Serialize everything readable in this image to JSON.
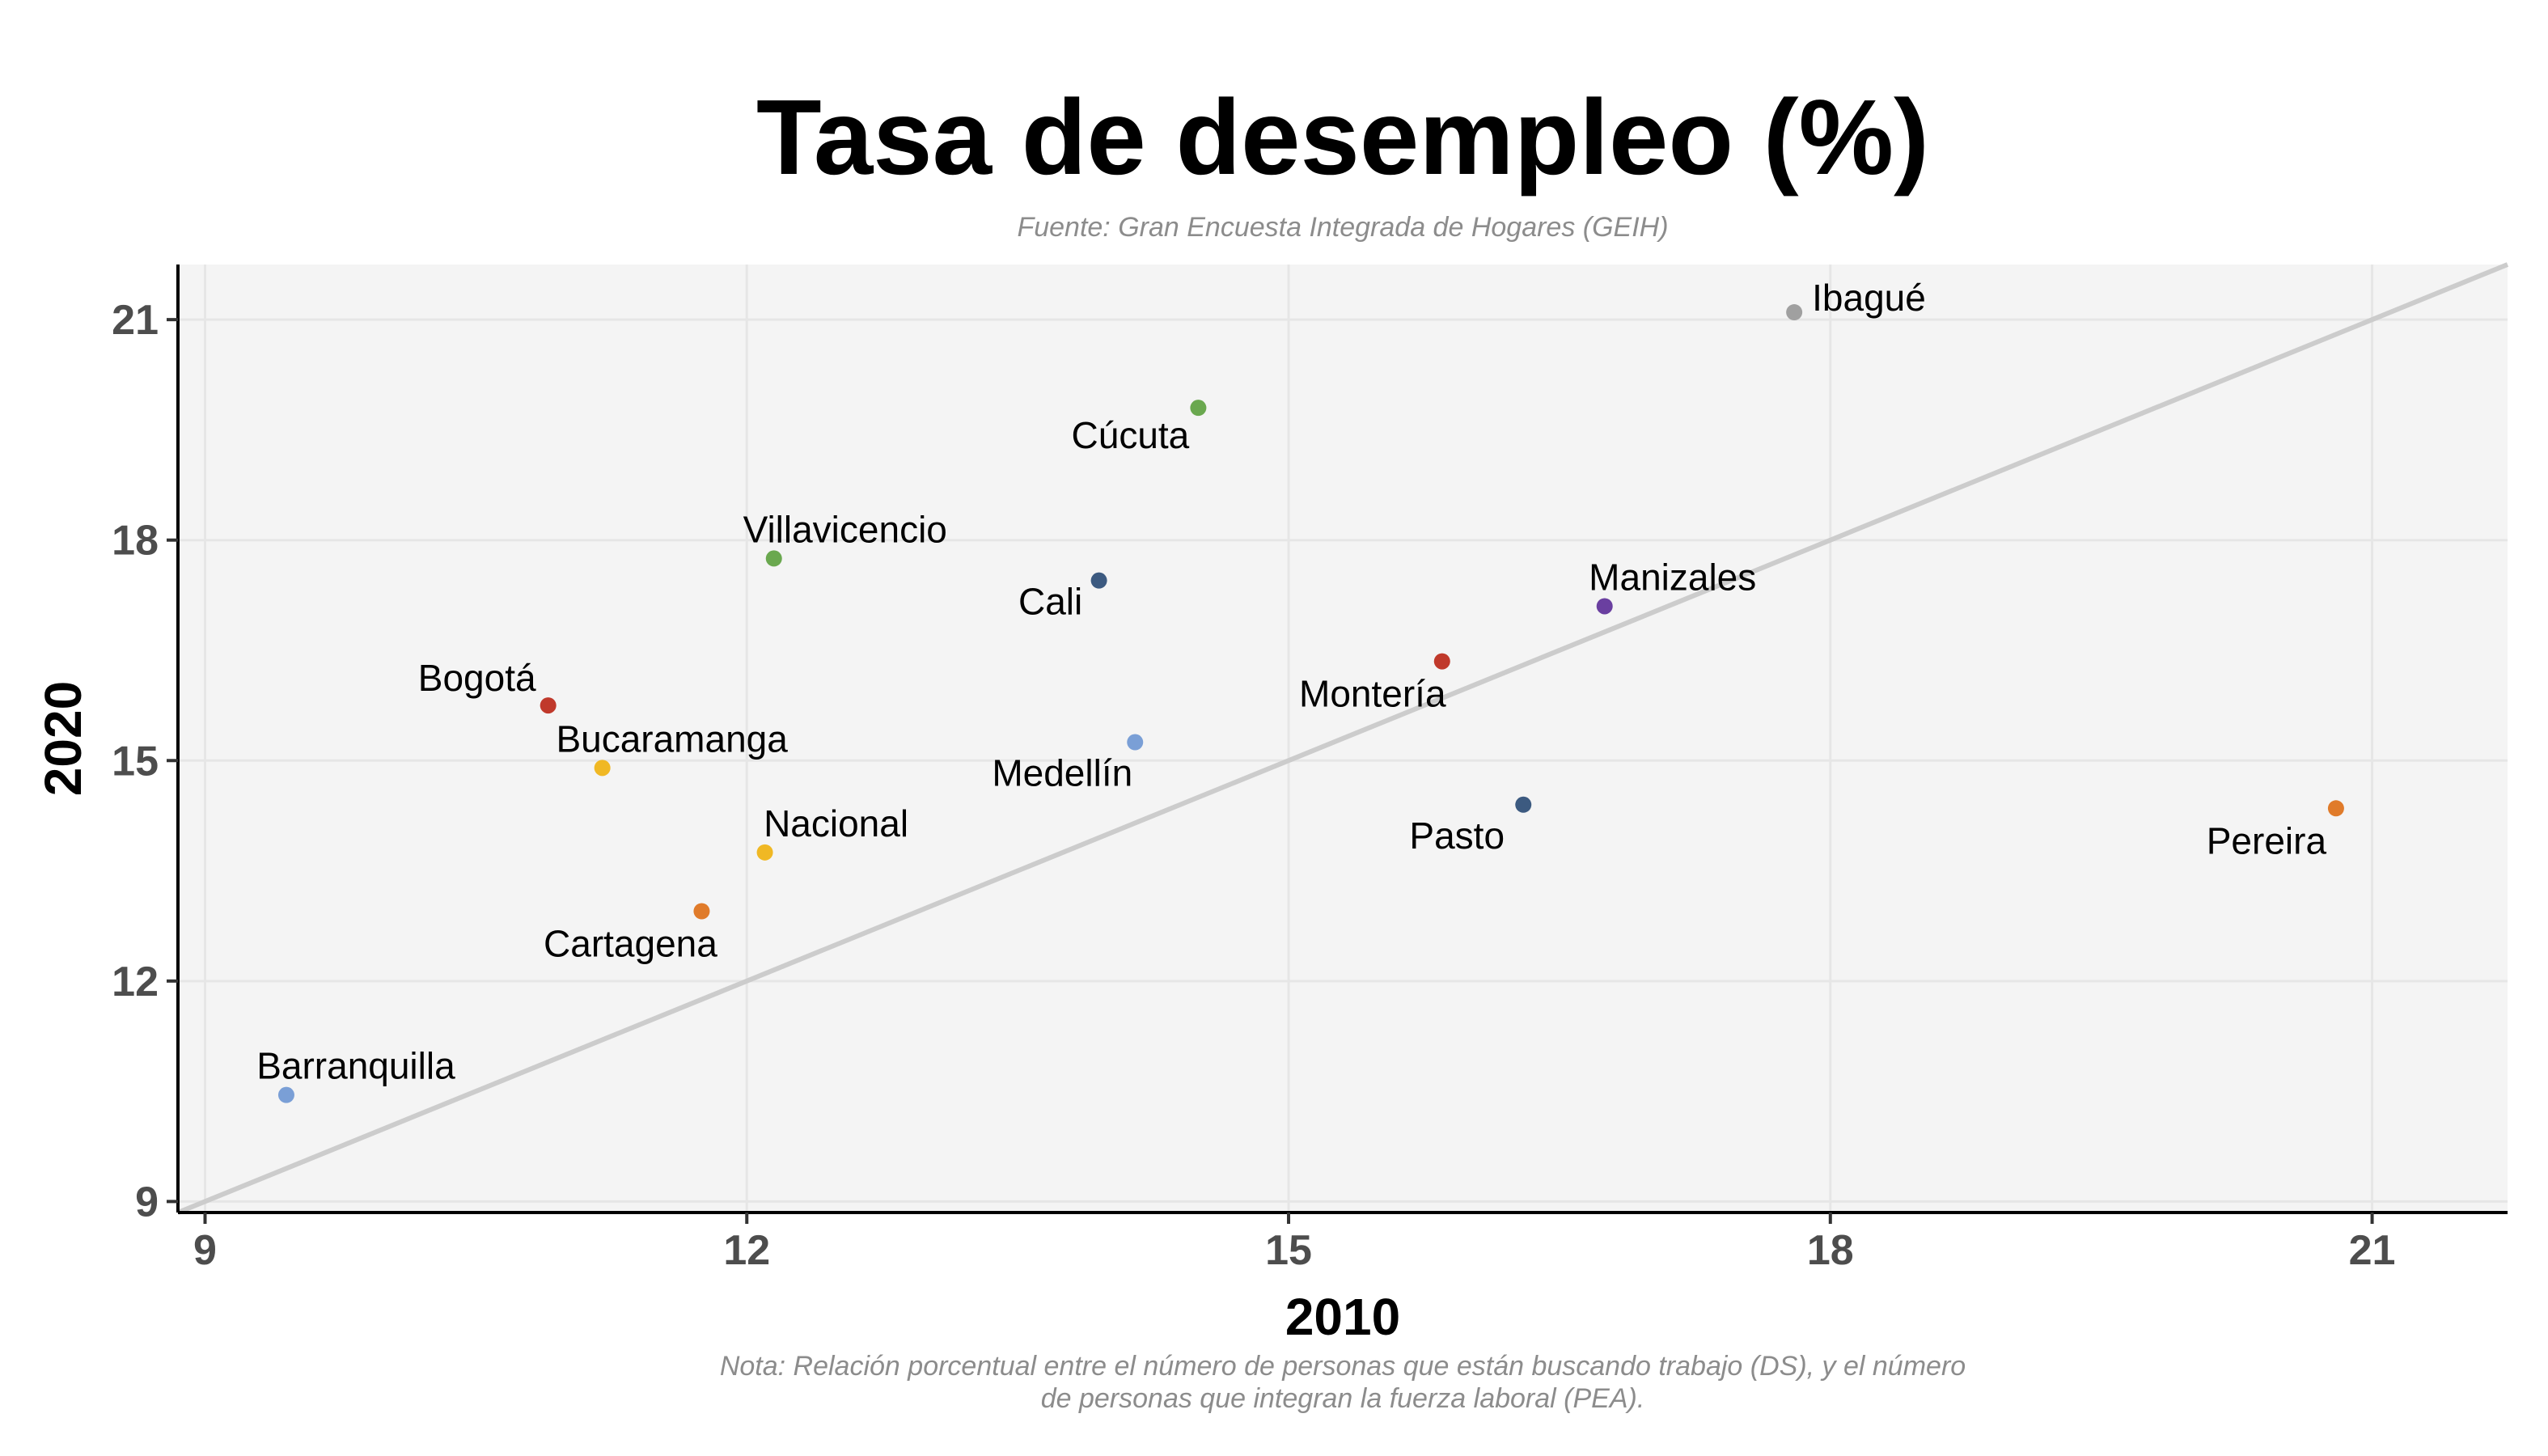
{
  "chart_data": {
    "type": "scatter",
    "title": "Tasa de desempleo (%)",
    "subtitle": "Fuente: Gran Encuesta Integrada de Hogares (GEIH)",
    "xlabel": "2010",
    "ylabel": "2020",
    "xlim": [
      8.85,
      21.75
    ],
    "ylim": [
      8.85,
      21.75
    ],
    "xticks": [
      "9",
      "12",
      "15",
      "18",
      "21"
    ],
    "yticks": [
      "9",
      "12",
      "15",
      "18",
      "21"
    ],
    "grid": true,
    "reference_line": "y = x",
    "note_lines": [
      "Nota: Relación porcentual entre el número de personas que están buscando trabajo (DS), y el número",
      "de personas que integran la fuerza laboral (PEA)."
    ],
    "points": [
      {
        "label": "Ibagué",
        "x": 17.8,
        "y": 21.1,
        "color": "#a0a0a0"
      },
      {
        "label": "Cúcuta",
        "x": 14.5,
        "y": 19.8,
        "color": "#6aa84f"
      },
      {
        "label": "Villavicencio",
        "x": 12.15,
        "y": 17.75,
        "color": "#6aa84f"
      },
      {
        "label": "Cali",
        "x": 13.95,
        "y": 17.45,
        "color": "#3c5a80"
      },
      {
        "label": "Manizales",
        "x": 16.75,
        "y": 17.1,
        "color": "#6a3fa0"
      },
      {
        "label": "Montería",
        "x": 15.85,
        "y": 16.35,
        "color": "#c0392b"
      },
      {
        "label": "Bogotá",
        "x": 10.9,
        "y": 15.75,
        "color": "#c0392b"
      },
      {
        "label": "Medellín",
        "x": 14.15,
        "y": 15.25,
        "color": "#7a9fd6"
      },
      {
        "label": "Bucaramanga",
        "x": 11.2,
        "y": 14.9,
        "color": "#f0b824"
      },
      {
        "label": "Pasto",
        "x": 16.3,
        "y": 14.4,
        "color": "#3c5a80"
      },
      {
        "label": "Pereira",
        "x": 20.8,
        "y": 14.35,
        "color": "#e07b2a"
      },
      {
        "label": "Nacional",
        "x": 12.1,
        "y": 13.75,
        "color": "#f0b824"
      },
      {
        "label": "Cartagena",
        "x": 11.75,
        "y": 12.95,
        "color": "#e07b2a"
      },
      {
        "label": "Barranquilla",
        "x": 9.45,
        "y": 10.45,
        "color": "#7a9fd6"
      }
    ]
  }
}
